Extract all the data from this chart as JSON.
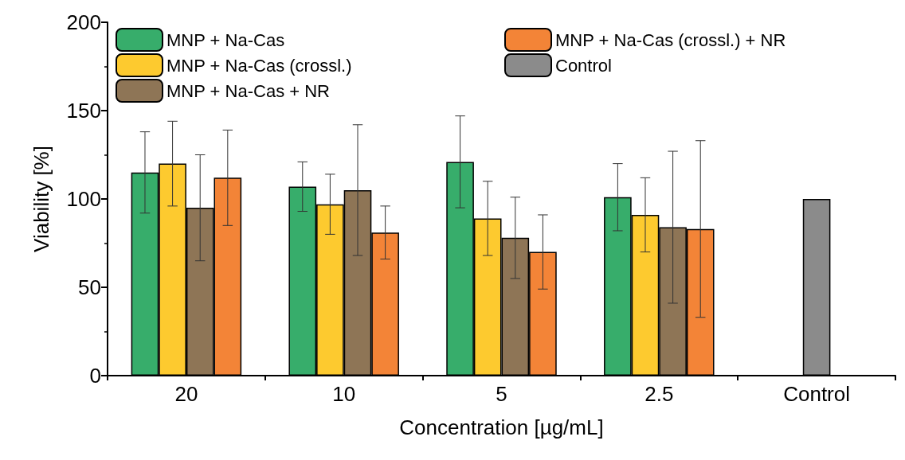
{
  "chart_data": {
    "type": "bar",
    "xlabel": "Concentration [µg/mL]",
    "ylabel": "Viability [%]",
    "categories": [
      "20",
      "10",
      "5",
      "2.5",
      "Control"
    ],
    "series": [
      {
        "name": "MNP + Na-Cas",
        "color": "#37ad6b",
        "values": [
          115,
          107,
          121,
          101,
          null
        ],
        "errors": [
          23,
          14,
          26,
          19,
          null
        ]
      },
      {
        "name": "MNP + Na-Cas (crossl.)",
        "color": "#fdca2f",
        "values": [
          120,
          97,
          89,
          91,
          null
        ],
        "errors": [
          24,
          17,
          21,
          21,
          null
        ]
      },
      {
        "name": "MNP + Na-Cas + NR",
        "color": "#8e7556",
        "values": [
          95,
          105,
          78,
          84,
          null
        ],
        "errors": [
          30,
          37,
          23,
          43,
          null
        ]
      },
      {
        "name": "MNP + Na-Cas (crossl.) + NR",
        "color": "#f38437",
        "values": [
          112,
          81,
          70,
          83,
          null
        ],
        "errors": [
          27,
          15,
          21,
          50,
          null
        ]
      },
      {
        "name": "Control",
        "color": "#8b8b8b",
        "values": [
          null,
          null,
          null,
          null,
          100
        ]
      }
    ],
    "ylim": [
      0,
      200
    ],
    "yticks": [
      0,
      50,
      100,
      150,
      200
    ],
    "grid": false,
    "legend": "top"
  }
}
